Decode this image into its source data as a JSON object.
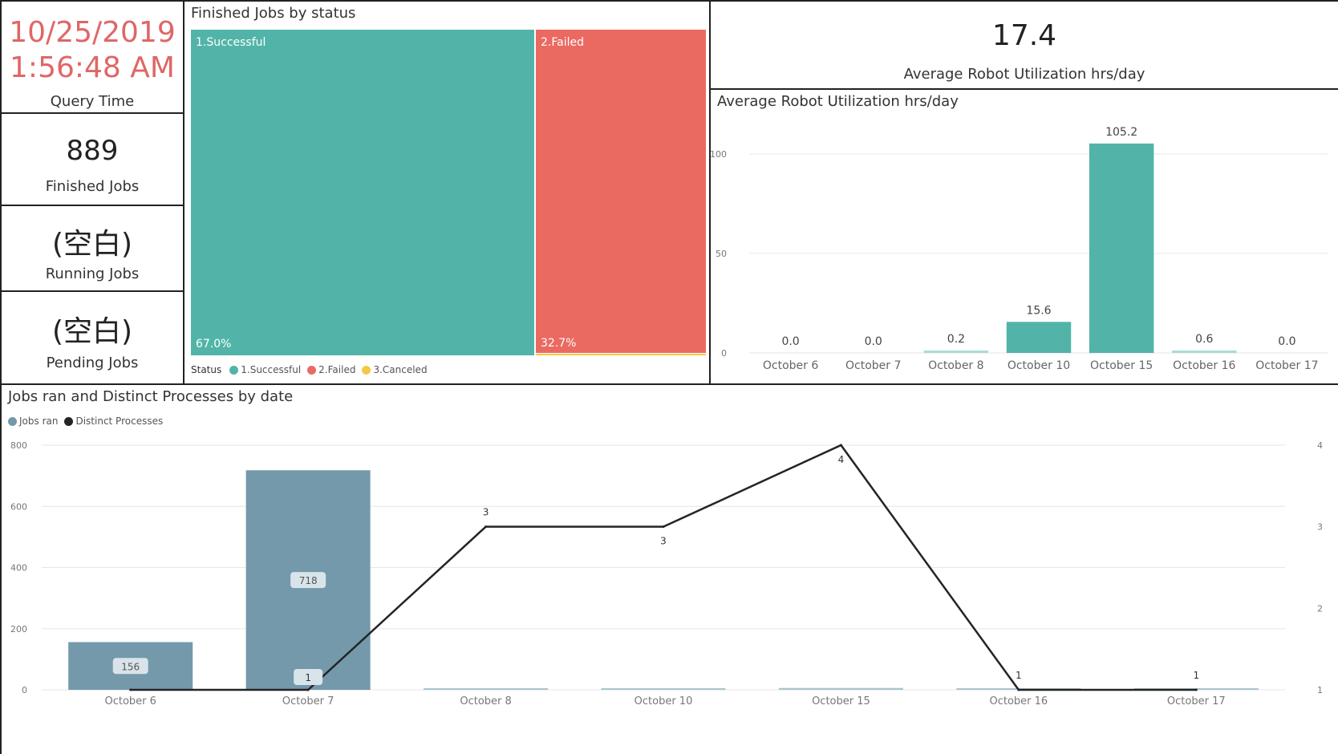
{
  "query_time": {
    "date": "10/25/2019",
    "time": "1:56:48 AM",
    "label": "Query Time",
    "color": "#e06666"
  },
  "finished_jobs": {
    "value": "889",
    "label": "Finished Jobs"
  },
  "running_jobs": {
    "value": "(空白)",
    "label": "Running Jobs"
  },
  "pending_jobs": {
    "value": "(空白)",
    "label": "Pending Jobs"
  },
  "utilization_kpi": {
    "value": "17.4",
    "label": "Average Robot Utilization hrs/day"
  },
  "treemap": {
    "title": "Finished Jobs by status",
    "legend_title": "Status",
    "items": [
      {
        "name": "1.Successful",
        "pct_label": "67.0%",
        "value": 67.0,
        "color": "#52b4a8"
      },
      {
        "name": "2.Failed",
        "pct_label": "32.7%",
        "value": 32.7,
        "color": "#ea6a62"
      },
      {
        "name": "3.Canceled",
        "pct_label": "",
        "value": 0.3,
        "color": "#f5c842"
      }
    ]
  },
  "chart_data": [
    {
      "type": "bar",
      "title": "Average Robot Utilization hrs/day",
      "categories": [
        "October 6",
        "October 7",
        "October 8",
        "October 10",
        "October 15",
        "October 16",
        "October 17"
      ],
      "values": [
        0.0,
        0.0,
        0.2,
        15.6,
        105.2,
        0.6,
        0.0
      ],
      "labels": [
        "0.0",
        "0.0",
        "0.2",
        "15.6",
        "105.2",
        "0.6",
        "0.0"
      ],
      "yticks": [
        "0",
        "50",
        "100"
      ],
      "ylim": [
        0,
        110
      ],
      "color": "#52b4a8",
      "light_color": "#a8dcd6",
      "grid": true
    },
    {
      "type": "bar+line",
      "title": "Jobs ran and Distinct Processes by date",
      "categories": [
        "October 6",
        "October 7",
        "October 8",
        "October 10",
        "October 15",
        "October 16",
        "October 17"
      ],
      "series": [
        {
          "name": "Jobs ran",
          "type": "bar",
          "values": [
            156,
            718,
            1,
            1,
            6,
            1,
            1
          ],
          "labels": [
            "156",
            "718",
            "",
            "",
            "",
            "",
            ""
          ],
          "color": "#7399ab"
        },
        {
          "name": "Distinct Processes",
          "type": "line",
          "axis": "right",
          "values": [
            1,
            1,
            3,
            3,
            4,
            1,
            1
          ],
          "labels": [
            "",
            "1",
            "3",
            "3",
            "4",
            "1",
            "1"
          ],
          "color": "#252423"
        }
      ],
      "yticks_left": [
        "0",
        "200",
        "400",
        "600",
        "800"
      ],
      "ylim_left": [
        0,
        800
      ],
      "yticks_right": [
        "1",
        "2",
        "3",
        "4"
      ],
      "ylim_right": [
        1,
        4
      ],
      "legend_placement": "top-left",
      "grid": true
    }
  ]
}
